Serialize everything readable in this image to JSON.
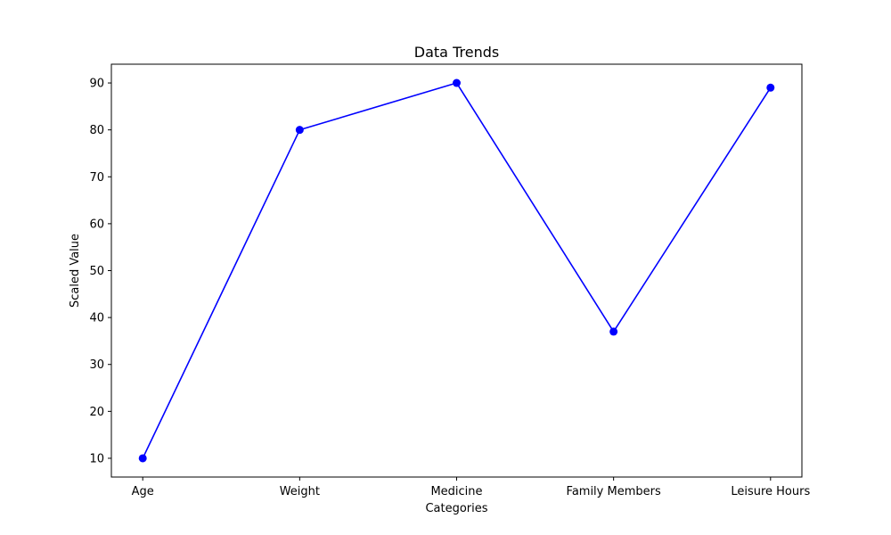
{
  "chart_data": {
    "type": "line",
    "title": "Data Trends",
    "xlabel": "Categories",
    "ylabel": "Scaled Value",
    "categories": [
      "Age",
      "Weight",
      "Medicine",
      "Family Members",
      "Leisure Hours"
    ],
    "series": [
      {
        "values": [
          10,
          80,
          90,
          37,
          89
        ],
        "color": "#0000ff",
        "marker": "circle"
      }
    ],
    "yticks": [
      10,
      20,
      30,
      40,
      50,
      60,
      70,
      80,
      90
    ],
    "ylim": [
      6,
      94
    ],
    "grid": false,
    "legend": "none"
  }
}
